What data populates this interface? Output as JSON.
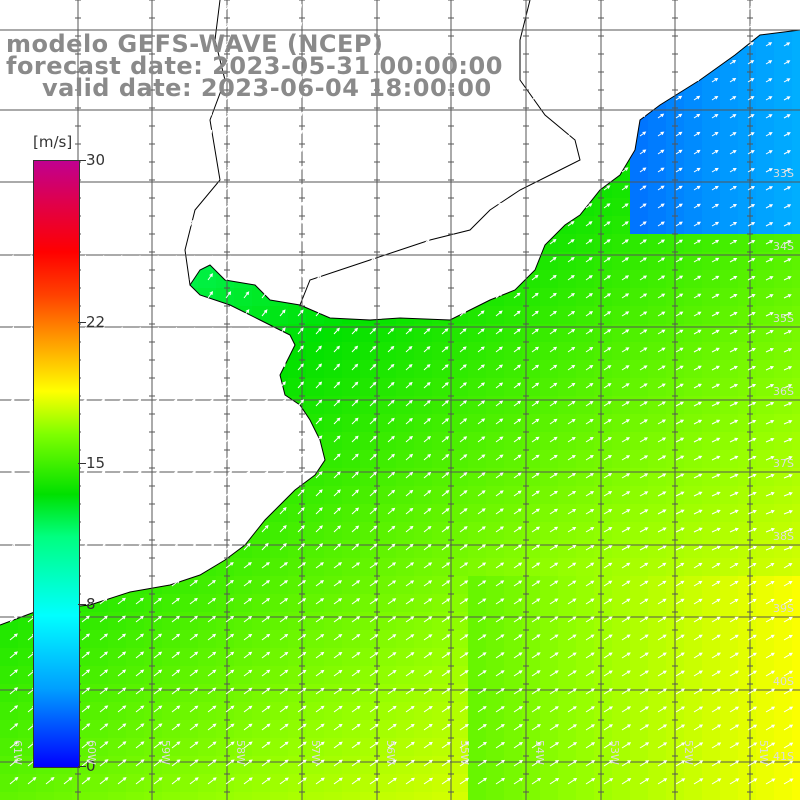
{
  "title": {
    "line1": "modelo GEFS-WAVE (NCEP)",
    "line2": "forecast date: 2023-05-31 00:00:00",
    "line3": "valid date: 2023-06-04 18:00:00"
  },
  "colorbar": {
    "unit": "[m/s]",
    "ticks": [
      {
        "label": "30",
        "value": 30
      },
      {
        "label": "22",
        "value": 22
      },
      {
        "label": "15",
        "value": 15
      },
      {
        "label": "8",
        "value": 8
      },
      {
        "label": "0",
        "value": 0
      }
    ],
    "min": 0,
    "max": 30
  },
  "axes": {
    "lat_labels": [
      "33S",
      "34S",
      "35S",
      "36S",
      "37S",
      "38S",
      "39S",
      "40S",
      "41S"
    ],
    "lon_labels": [
      "61W",
      "60W",
      "59W",
      "58W",
      "57W",
      "56W",
      "55W",
      "54W",
      "53W",
      "52W",
      "51W"
    ]
  },
  "colors": {
    "land": "#ffffff",
    "coastline": "#000000",
    "grid": "#555555",
    "arrows": "#ffffff",
    "title_text": "#8a8a8a"
  }
}
